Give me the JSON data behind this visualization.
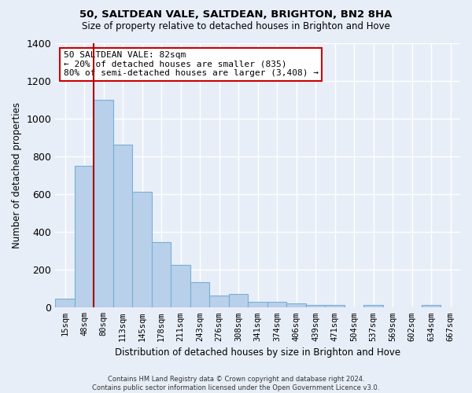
{
  "title": "50, SALTDEAN VALE, SALTDEAN, BRIGHTON, BN2 8HA",
  "subtitle": "Size of property relative to detached houses in Brighton and Hove",
  "xlabel": "Distribution of detached houses by size in Brighton and Hove",
  "ylabel": "Number of detached properties",
  "footer1": "Contains HM Land Registry data © Crown copyright and database right 2024.",
  "footer2": "Contains public sector information licensed under the Open Government Licence v3.0.",
  "annotation_line1": "50 SALTDEAN VALE: 82sqm",
  "annotation_line2": "← 20% of detached houses are smaller (835)",
  "annotation_line3": "80% of semi-detached houses are larger (3,408) →",
  "bar_labels": [
    "15sqm",
    "48sqm",
    "80sqm",
    "113sqm",
    "145sqm",
    "178sqm",
    "211sqm",
    "243sqm",
    "276sqm",
    "308sqm",
    "341sqm",
    "374sqm",
    "406sqm",
    "439sqm",
    "471sqm",
    "504sqm",
    "537sqm",
    "569sqm",
    "602sqm",
    "634sqm",
    "667sqm"
  ],
  "bar_values": [
    48,
    750,
    1100,
    865,
    615,
    345,
    225,
    135,
    65,
    70,
    30,
    30,
    22,
    15,
    15,
    0,
    12,
    0,
    0,
    12,
    0
  ],
  "bar_color": "#b8d0ea",
  "bar_edge_color": "#7aafd4",
  "highlight_bar_index": 2,
  "highlight_line_color": "#aa0000",
  "bg_color": "#e8eef8",
  "plot_bg_color": "#e8eef8",
  "grid_color": "#ffffff",
  "ylim": [
    0,
    1400
  ],
  "yticks": [
    0,
    200,
    400,
    600,
    800,
    1000,
    1200,
    1400
  ]
}
